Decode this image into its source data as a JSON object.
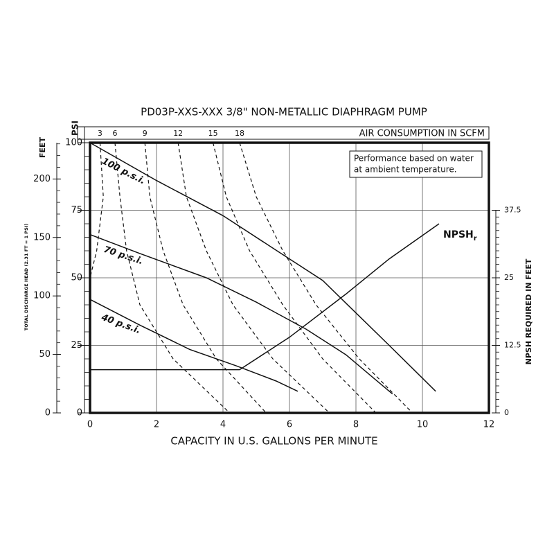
{
  "chart_data": {
    "type": "line",
    "title": "PD03P-XXS-XXX  3/8\" NON-METALLIC DIAPHRAGM PUMP",
    "x_label": "CAPACITY IN U.S. GALLONS PER MINUTE",
    "y_label": "PSI",
    "xlim": [
      0,
      12
    ],
    "xticks": [
      0,
      2,
      4,
      6,
      8,
      10,
      12
    ],
    "ylim": [
      0,
      100
    ],
    "yticks": [
      0,
      25,
      50,
      75,
      100
    ],
    "y2_label": "NPSH REQUIRED IN FEET",
    "y2lim": [
      0,
      50
    ],
    "y2ticks": [
      0,
      12.5,
      25,
      37.5
    ],
    "feet_axis": {
      "label": "FEET",
      "title": "TOTAL DISCHARGE HEAD (2.31 FT = 1 PSI)",
      "lim": [
        0,
        231
      ],
      "ticks": [
        0,
        50,
        100,
        150,
        200
      ]
    },
    "grid": true,
    "note": [
      "Performance based on water",
      "at ambient temperature."
    ],
    "series": [
      {
        "name": "100 p.s.i.",
        "color": "#111111",
        "x": [
          0,
          2,
          4,
          6,
          7,
          8,
          9,
          10.4
        ],
        "values": [
          100,
          86,
          73,
          57,
          49,
          37,
          25,
          8
        ]
      },
      {
        "name": "70 p.s.i.",
        "color": "#111111",
        "x": [
          0,
          1.5,
          3.5,
          5,
          6.5,
          7.7,
          9.1
        ],
        "values": [
          66,
          59,
          50,
          41,
          31,
          21.5,
          7
        ]
      },
      {
        "name": "40 p.s.i.",
        "color": "#111111",
        "x": [
          0,
          1.5,
          3,
          4.4,
          5.6,
          6.25
        ],
        "values": [
          42,
          32.5,
          23.5,
          17.4,
          11.8,
          8
        ]
      },
      {
        "name": "NPSH",
        "name_subscript": "r",
        "axis": "y2",
        "color": "#111111",
        "x": [
          0,
          4.5,
          6,
          7.7,
          9,
          10.5
        ],
        "values": [
          8,
          8,
          14,
          22,
          28.5,
          35
        ]
      }
    ],
    "air_consumption": {
      "label": "AIR CONSUMPTION IN SCFM",
      "curves": [
        {
          "scfm": 3,
          "x": [
            0.3,
            0.4,
            0.2,
            0
          ],
          "values": [
            100,
            80,
            60,
            50
          ]
        },
        {
          "scfm": 6,
          "x": [
            0.75,
            0.9,
            1.1,
            1.5,
            2.5,
            4.2
          ],
          "values": [
            100,
            80,
            60,
            40,
            20,
            0
          ]
        },
        {
          "scfm": 9,
          "x": [
            1.65,
            1.8,
            2.2,
            2.8,
            3.8,
            5.3
          ],
          "values": [
            100,
            80,
            60,
            40,
            20,
            0
          ]
        },
        {
          "scfm": 12,
          "x": [
            2.65,
            2.9,
            3.5,
            4.3,
            5.5,
            7.2
          ],
          "values": [
            100,
            80,
            60,
            40,
            20,
            0
          ]
        },
        {
          "scfm": 15,
          "x": [
            3.7,
            4.1,
            4.8,
            5.8,
            7.0,
            8.6
          ],
          "values": [
            100,
            80,
            60,
            40,
            20,
            0
          ]
        },
        {
          "scfm": 18,
          "x": [
            4.5,
            5.0,
            5.8,
            6.8,
            8.1,
            9.7
          ],
          "values": [
            100,
            80,
            60,
            40,
            20,
            0
          ]
        }
      ]
    }
  }
}
